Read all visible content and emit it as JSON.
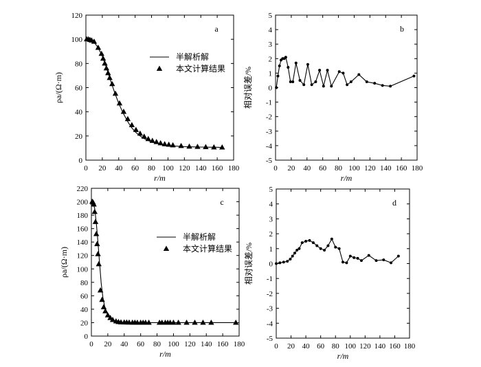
{
  "chart_data": [
    {
      "panel": "a",
      "type": "line+scatter",
      "panel_label": "a",
      "xlabel": "r/m",
      "ylabel": "ρa/(Ω·m)",
      "xlim": [
        0,
        180
      ],
      "ylim": [
        0,
        120
      ],
      "x_ticks": [
        0,
        20,
        40,
        60,
        80,
        100,
        120,
        140,
        160,
        180
      ],
      "y_ticks": [
        0,
        20,
        40,
        60,
        80,
        100,
        120
      ],
      "grid": false,
      "legend_position": "upper-right",
      "series": [
        {
          "name": "半解析解",
          "style": "line",
          "x": [
            0,
            5,
            10,
            15,
            20,
            25,
            30,
            35,
            40,
            45,
            50,
            55,
            60,
            65,
            70,
            75,
            80,
            90,
            100,
            110,
            120,
            130,
            140,
            150,
            160,
            165
          ],
          "y": [
            100,
            99.5,
            97.5,
            93,
            86,
            76.5,
            66,
            56,
            47,
            39.5,
            33,
            27.5,
            23.5,
            20.5,
            18.2,
            16.5,
            15,
            13.3,
            12.2,
            11.6,
            11.2,
            11,
            10.8,
            10.7,
            10.6,
            10.5
          ]
        },
        {
          "name": "本文计算结果",
          "style": "triangle",
          "x": [
            1,
            3,
            5,
            7,
            10,
            15,
            19,
            21,
            23,
            25,
            27,
            29,
            32,
            36,
            41,
            46,
            51,
            56,
            61,
            66,
            71,
            76,
            81,
            86,
            91,
            96,
            101,
            106,
            116,
            126,
            136,
            146,
            156,
            166
          ],
          "y": [
            100,
            100,
            99.5,
            99,
            98,
            93,
            88,
            84,
            80,
            76,
            72,
            68,
            63,
            55,
            47,
            40,
            34,
            29,
            25,
            22,
            19.5,
            17.5,
            16,
            15,
            14,
            13.2,
            12.8,
            12.3,
            11.7,
            11.2,
            11,
            10.8,
            10.6,
            10.5
          ]
        }
      ]
    },
    {
      "panel": "b",
      "type": "line",
      "panel_label": "b",
      "xlabel": "r/m",
      "ylabel": "相对误差/%",
      "xlim": [
        0,
        180
      ],
      "ylim": [
        -5,
        5
      ],
      "x_ticks": [
        0,
        20,
        40,
        60,
        80,
        100,
        120,
        140,
        160,
        180
      ],
      "y_ticks": [
        -5,
        -4,
        -3,
        -2,
        -1,
        0,
        1,
        2,
        3,
        4,
        5
      ],
      "grid": false,
      "series": [
        {
          "x": [
            1,
            3,
            5,
            7,
            9,
            11,
            13,
            16,
            19,
            22,
            26,
            31,
            36,
            41,
            46,
            51,
            56,
            61,
            66,
            71,
            81,
            86,
            91,
            96,
            106,
            116,
            126,
            136,
            146,
            176
          ],
          "y": [
            0,
            0.8,
            1.5,
            1.9,
            2.0,
            2.0,
            2.1,
            1.4,
            0.4,
            0.4,
            1.7,
            0.5,
            0.2,
            1.6,
            0.2,
            0.4,
            1.2,
            0.1,
            1.2,
            0.1,
            1.1,
            1.0,
            0.2,
            0.4,
            0.9,
            0.4,
            0.3,
            0.15,
            0.1,
            0.8
          ]
        }
      ]
    },
    {
      "panel": "c",
      "type": "line+scatter",
      "panel_label": "c",
      "xlabel": "r/m",
      "ylabel": "ρa/(Ω·m)",
      "xlim": [
        0,
        180
      ],
      "ylim": [
        0,
        220
      ],
      "x_ticks": [
        0,
        20,
        40,
        60,
        80,
        100,
        120,
        140,
        160,
        180
      ],
      "y_ticks": [
        0,
        20,
        40,
        60,
        80,
        100,
        120,
        140,
        160,
        180,
        200,
        220
      ],
      "grid": false,
      "legend_position": "center-right",
      "series": [
        {
          "name": "半解析解",
          "style": "line",
          "x": [
            0,
            2,
            4,
            6,
            8,
            10,
            12,
            14,
            16,
            18,
            20,
            22,
            25,
            28,
            32,
            36,
            40,
            50,
            60,
            80,
            100,
            120,
            140,
            160,
            175
          ],
          "y": [
            200,
            199,
            190,
            168,
            140,
            108,
            78,
            58,
            45,
            37,
            31,
            27.5,
            24,
            22,
            21,
            20.5,
            20.2,
            20,
            20,
            20,
            20,
            20,
            20,
            20,
            20
          ]
        },
        {
          "name": "本文计算结果",
          "style": "triangle",
          "x": [
            1,
            2,
            3,
            4,
            5,
            6,
            7,
            8,
            9,
            11,
            13,
            15,
            17,
            20,
            23,
            26,
            30,
            33,
            36,
            40,
            43,
            46,
            50,
            53,
            56,
            60,
            63,
            66,
            70,
            83,
            86,
            90,
            93,
            96,
            100,
            106,
            116,
            126,
            136,
            146,
            176
          ],
          "y": [
            200,
            199,
            196,
            185,
            170,
            152,
            137,
            122,
            107,
            68,
            54,
            43,
            37,
            31,
            27,
            24,
            22,
            21,
            20.5,
            20.4,
            20.3,
            20.2,
            20.1,
            20.1,
            20,
            20,
            20,
            20,
            20,
            20,
            20,
            20,
            20,
            20,
            20,
            20,
            20,
            20,
            20,
            20,
            20
          ]
        }
      ]
    },
    {
      "panel": "d",
      "type": "line",
      "panel_label": "d",
      "xlabel": "r/m",
      "ylabel": "相对误差/%",
      "xlim": [
        0,
        180
      ],
      "ylim": [
        -5,
        5
      ],
      "x_ticks": [
        0,
        20,
        40,
        60,
        80,
        100,
        120,
        140,
        160,
        180
      ],
      "y_ticks": [
        -5,
        -4,
        -3,
        -2,
        -1,
        0,
        1,
        2,
        3,
        4,
        5
      ],
      "grid": false,
      "series": [
        {
          "x": [
            0,
            5,
            10,
            15,
            19,
            22,
            25,
            28,
            31,
            35,
            40,
            45,
            50,
            55,
            60,
            65,
            70,
            75,
            80,
            85,
            90,
            95,
            100,
            105,
            110,
            115,
            125,
            135,
            145,
            155,
            165
          ],
          "y": [
            0,
            0.05,
            0.1,
            0.15,
            0.3,
            0.5,
            0.7,
            0.9,
            1.0,
            1.4,
            1.5,
            1.55,
            1.4,
            1.2,
            1.0,
            0.9,
            1.2,
            1.65,
            1.1,
            1.0,
            0.1,
            0.05,
            0.5,
            0.4,
            0.35,
            0.2,
            0.55,
            0.2,
            0.25,
            0.05,
            0.5
          ]
        }
      ]
    }
  ]
}
